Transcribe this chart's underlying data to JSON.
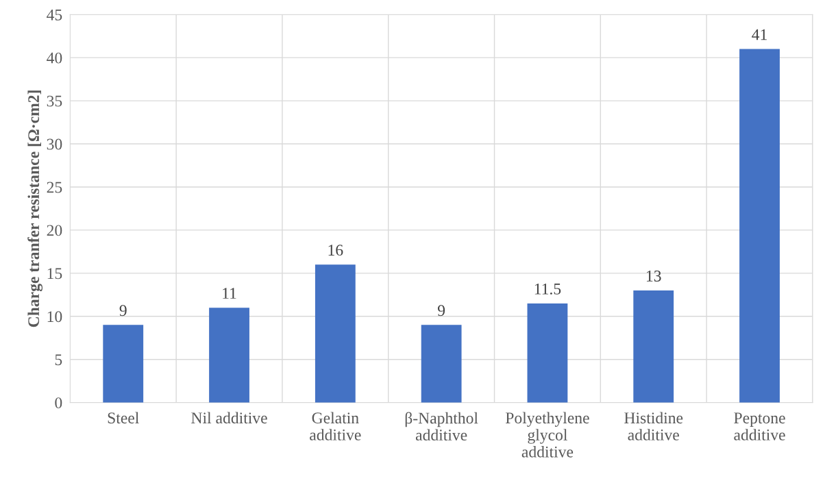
{
  "chart_data": {
    "type": "bar",
    "ylabel": "Charge tranfer resistance [Ω·cm2]",
    "categories": [
      "Steel",
      "Nil additive",
      "Gelatin\nadditive",
      "β-Naphthol\nadditive",
      "Polyethylene\nglycol\nadditive",
      "Histidine\nadditive",
      "Peptone\nadditive"
    ],
    "values": [
      9,
      11,
      16,
      9,
      11.5,
      13,
      41
    ],
    "color": "#4472c4",
    "ylim": [
      0,
      45
    ],
    "yticks": [
      0,
      5,
      10,
      15,
      20,
      25,
      30,
      35,
      40,
      45
    ],
    "grid": true,
    "data_labels": true
  }
}
